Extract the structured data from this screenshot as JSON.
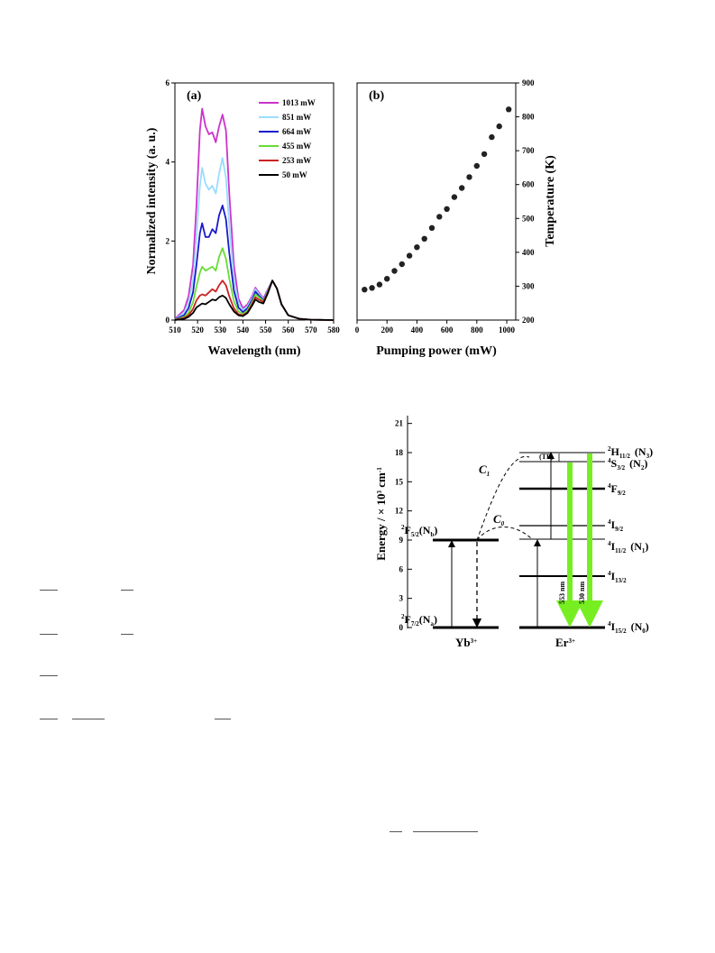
{
  "chart_data": [
    {
      "type": "line",
      "panel_label": "(a)",
      "xlabel": "Wavelength (nm)",
      "ylabel": "Normalized intensity (a. u.)",
      "xlim": [
        510,
        580
      ],
      "ylim": [
        0,
        6
      ],
      "xticks": [
        "510",
        "520",
        "530",
        "540",
        "550",
        "560",
        "570",
        "580"
      ],
      "yticks": [
        "0",
        "2",
        "4",
        "6"
      ],
      "legend_position": "top-right",
      "series": [
        {
          "name": "1013 mW",
          "color": "#cc33cc",
          "x": [
            510,
            514,
            516,
            518,
            519.5,
            521,
            522,
            523.5,
            525,
            526.5,
            528,
            529.5,
            531,
            532.5,
            534,
            536,
            538,
            540,
            542,
            544,
            545.5,
            547,
            549,
            551,
            553,
            555,
            557,
            560,
            565,
            570,
            580
          ],
          "y": [
            0.03,
            0.25,
            0.6,
            1.4,
            2.9,
            4.8,
            5.35,
            4.9,
            4.7,
            4.75,
            4.5,
            4.9,
            5.2,
            4.8,
            3.2,
            1.4,
            0.55,
            0.3,
            0.4,
            0.6,
            0.82,
            0.7,
            0.55,
            0.78,
            1.0,
            0.8,
            0.4,
            0.12,
            0.03,
            0.01,
            0.0
          ]
        },
        {
          "name": "851 mW",
          "color": "#99ddff",
          "x": [
            510,
            514,
            516,
            518,
            519.5,
            521,
            522,
            523.5,
            525,
            526.5,
            528,
            529.5,
            531,
            532.5,
            534,
            536,
            538,
            540,
            542,
            544,
            545.5,
            547,
            549,
            551,
            553,
            555,
            557,
            560,
            565,
            570,
            580
          ],
          "y": [
            0.02,
            0.18,
            0.45,
            1.0,
            2.1,
            3.4,
            3.85,
            3.45,
            3.3,
            3.4,
            3.2,
            3.7,
            4.1,
            3.6,
            2.4,
            1.05,
            0.42,
            0.25,
            0.35,
            0.55,
            0.78,
            0.66,
            0.52,
            0.76,
            1.0,
            0.8,
            0.4,
            0.12,
            0.03,
            0.01,
            0.0
          ]
        },
        {
          "name": "664 mW",
          "color": "#1a1acc",
          "x": [
            510,
            514,
            516,
            518,
            519.5,
            521,
            522,
            523.5,
            525,
            526.5,
            528,
            529.5,
            531,
            532.5,
            534,
            536,
            538,
            540,
            542,
            544,
            545.5,
            547,
            549,
            551,
            553,
            555,
            557,
            560,
            565,
            570,
            580
          ],
          "y": [
            0.02,
            0.12,
            0.3,
            0.7,
            1.4,
            2.2,
            2.45,
            2.1,
            2.1,
            2.3,
            2.2,
            2.65,
            2.9,
            2.55,
            1.7,
            0.75,
            0.32,
            0.2,
            0.3,
            0.5,
            0.72,
            0.62,
            0.5,
            0.74,
            1.0,
            0.8,
            0.4,
            0.12,
            0.03,
            0.01,
            0.0
          ]
        },
        {
          "name": "455 mW",
          "color": "#66dd33",
          "x": [
            510,
            514,
            516,
            518,
            519.5,
            521,
            522,
            523.5,
            525,
            526.5,
            528,
            529.5,
            531,
            532.5,
            534,
            536,
            538,
            540,
            542,
            544,
            545.5,
            547,
            549,
            551,
            553,
            555,
            557,
            560,
            565,
            570,
            580
          ],
          "y": [
            0.01,
            0.08,
            0.18,
            0.45,
            0.85,
            1.2,
            1.35,
            1.25,
            1.3,
            1.35,
            1.25,
            1.6,
            1.82,
            1.55,
            1.05,
            0.48,
            0.22,
            0.15,
            0.25,
            0.45,
            0.65,
            0.58,
            0.48,
            0.72,
            1.0,
            0.8,
            0.4,
            0.12,
            0.03,
            0.01,
            0.0
          ]
        },
        {
          "name": "253 mW",
          "color": "#cc2222",
          "x": [
            510,
            514,
            516,
            518,
            519.5,
            521,
            522,
            523.5,
            525,
            526.5,
            528,
            529.5,
            531,
            532.5,
            534,
            536,
            538,
            540,
            542,
            544,
            545.5,
            547,
            549,
            551,
            553,
            555,
            557,
            560,
            565,
            570,
            580
          ],
          "y": [
            0.01,
            0.05,
            0.12,
            0.28,
            0.5,
            0.62,
            0.65,
            0.62,
            0.7,
            0.78,
            0.72,
            0.88,
            1.0,
            0.88,
            0.6,
            0.3,
            0.15,
            0.12,
            0.2,
            0.4,
            0.58,
            0.52,
            0.46,
            0.7,
            1.0,
            0.8,
            0.4,
            0.12,
            0.03,
            0.01,
            0.0
          ]
        },
        {
          "name": "50 mW",
          "color": "#000000",
          "x": [
            510,
            514,
            516,
            518,
            519.5,
            521,
            522,
            523.5,
            525,
            526.5,
            528,
            529.5,
            531,
            532.5,
            534,
            536,
            538,
            540,
            542,
            544,
            545.5,
            547,
            549,
            551,
            553,
            555,
            557,
            560,
            565,
            570,
            580
          ],
          "y": [
            0.0,
            0.03,
            0.08,
            0.18,
            0.32,
            0.38,
            0.42,
            0.4,
            0.46,
            0.52,
            0.5,
            0.58,
            0.62,
            0.56,
            0.4,
            0.22,
            0.12,
            0.1,
            0.18,
            0.36,
            0.52,
            0.46,
            0.42,
            0.68,
            1.0,
            0.8,
            0.4,
            0.12,
            0.03,
            0.01,
            0.0
          ]
        }
      ]
    },
    {
      "type": "scatter",
      "panel_label": "(b)",
      "xlabel": "Pumping power (mW)",
      "ylabel": "Temperature (K)",
      "xlim": [
        0,
        1060
      ],
      "ylim": [
        200,
        900
      ],
      "xticks": [
        "0",
        "200",
        "400",
        "600",
        "800",
        "1000"
      ],
      "yticks": [
        "200",
        "300",
        "400",
        "500",
        "600",
        "700",
        "800",
        "900"
      ],
      "marker_color": "#222222",
      "x": [
        50,
        100,
        150,
        200,
        250,
        300,
        350,
        400,
        450,
        500,
        550,
        600,
        650,
        700,
        750,
        800,
        850,
        900,
        950,
        1013
      ],
      "y": [
        290,
        295,
        305,
        322,
        345,
        365,
        390,
        415,
        440,
        472,
        505,
        528,
        563,
        590,
        622,
        655,
        690,
        740,
        772,
        822
      ]
    }
  ],
  "energy_diagram": {
    "ylabel_main": "Energy / × 10",
    "ylabel_sup": "3",
    "ylabel_unit": " cm",
    "ylabel_unit_sup": "-1",
    "yticks": [
      "0",
      "3",
      "6",
      "9",
      "12",
      "15",
      "18",
      "21"
    ],
    "yb_label": "Yb",
    "yb_charge": "3+",
    "er_label": "Er",
    "er_charge": "3+",
    "yb_levels": [
      {
        "term": "2",
        "name": "F",
        "sub": "7/2",
        "pop": "(N",
        "pop_sub": "a",
        "close": ")"
      },
      {
        "term": "2",
        "name": "F",
        "sub": "5/2",
        "pop": "(N",
        "pop_sub": "b",
        "close": ")"
      }
    ],
    "er_levels": [
      {
        "term": "4",
        "name": "I",
        "sub": "15/2",
        "extra": "(N",
        "extra_sub": "0",
        "close": ")"
      },
      {
        "term": "4",
        "name": "I",
        "sub": "13/2",
        "extra": "",
        "extra_sub": "",
        "close": ""
      },
      {
        "term": "4",
        "name": "I",
        "sub": "11/2",
        "extra": "(N",
        "extra_sub": "1",
        "close": ")"
      },
      {
        "term": "4",
        "name": "I",
        "sub": "9/2",
        "extra": "",
        "extra_sub": "",
        "close": ""
      },
      {
        "term": "4",
        "name": "F",
        "sub": "9/2",
        "extra": "",
        "extra_sub": "",
        "close": ""
      },
      {
        "term": "4",
        "name": "S",
        "sub": "3/2",
        "extra": "(N",
        "extra_sub": "2",
        "close": ")"
      },
      {
        "term": "2",
        "name": "H",
        "sub": "11/2",
        "extra": "(N",
        "extra_sub": "3",
        "close": ")"
      }
    ],
    "c0_label": "C",
    "c0_sub": "0",
    "c1_label": "C",
    "c1_sub": "1",
    "tp_label": "(TP)",
    "emission_553": "553 nm",
    "emission_530": "530 nm",
    "emission_color": "#77ee22"
  }
}
